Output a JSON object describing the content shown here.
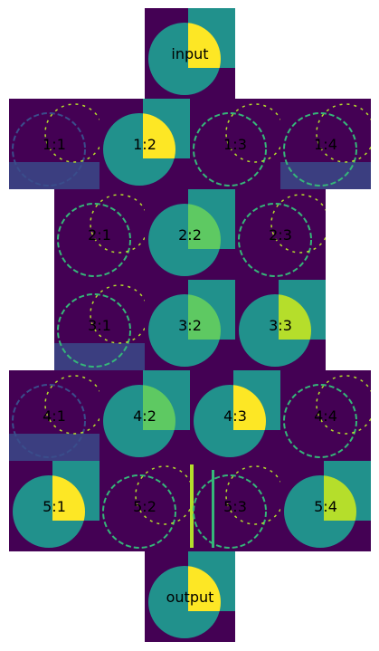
{
  "palette": {
    "bg": "#440154",
    "slate": "#3a4d8b",
    "teal": "#21918c",
    "green": "#5ec962",
    "lime": "#b5de2b",
    "yellow": "#fde725",
    "cyan": "#35b779"
  },
  "rows": [
    {
      "tiles": [
        {
          "label": "input",
          "style": "full"
        }
      ]
    },
    {
      "tiles": [
        {
          "label": "1:1",
          "style": "edge-dark"
        },
        {
          "label": "1:2",
          "style": "full"
        },
        {
          "label": "1:3",
          "style": "edge"
        },
        {
          "label": "1:4",
          "style": "edge-slate"
        }
      ]
    },
    {
      "tiles": [
        {
          "label": "2:1",
          "style": "edge"
        },
        {
          "label": "2:2",
          "style": "mid"
        },
        {
          "label": "2:3",
          "style": "edge"
        }
      ]
    },
    {
      "tiles": [
        {
          "label": "3:1",
          "style": "edge-slate"
        },
        {
          "label": "3:2",
          "style": "mid"
        },
        {
          "label": "3:3",
          "style": "mid-bright"
        }
      ]
    },
    {
      "tiles": [
        {
          "label": "4:1",
          "style": "edge-dark"
        },
        {
          "label": "4:2",
          "style": "mid"
        },
        {
          "label": "4:3",
          "style": "full"
        },
        {
          "label": "4:4",
          "style": "edge"
        }
      ]
    },
    {
      "tiles": [
        {
          "label": "5:1",
          "style": "full"
        },
        {
          "label": "5:2",
          "style": "edge"
        },
        {
          "label": "5:3",
          "style": "edge-lines"
        },
        {
          "label": "5:4",
          "style": "mid-bright"
        }
      ]
    },
    {
      "tiles": [
        {
          "label": "output",
          "style": "full"
        }
      ]
    }
  ]
}
